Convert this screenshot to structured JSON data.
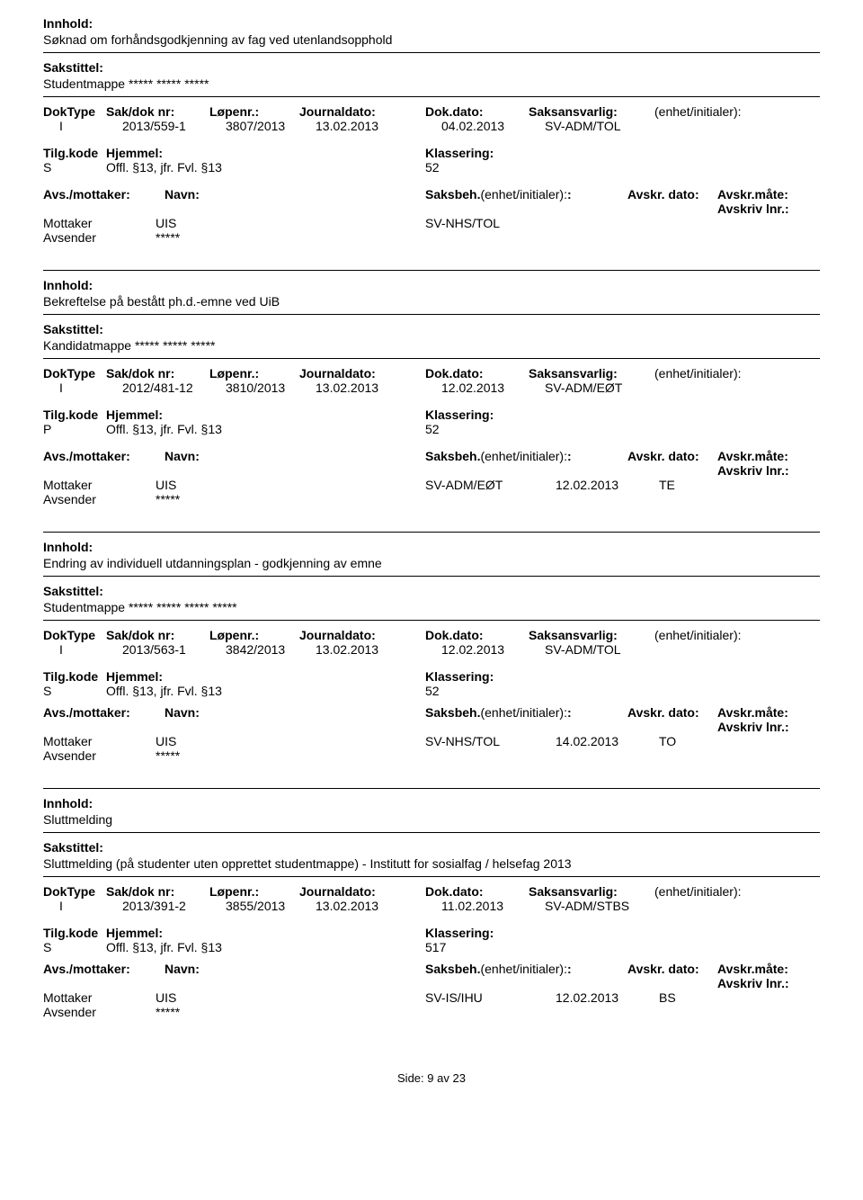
{
  "labels": {
    "innhold": "Innhold:",
    "sakstittel": "Sakstittel:",
    "doktype": "DokType",
    "sakdoknr": "Sak/dok nr:",
    "lopenr": "Løpenr.:",
    "journaldato": "Journaldato:",
    "dokdato": "Dok.dato:",
    "saksansvarlig": "Saksansvarlig:",
    "enhet": "(enhet/initialer):",
    "tilgkode": "Tilg.kode",
    "hjemmel": "Hjemmel:",
    "klassering": "Klassering:",
    "avsmottaker": "Avs./mottaker:",
    "navn": "Navn:",
    "saksbeh": "Saksbeh.",
    "saksbeh_enhet": "(enhet/initialer):",
    "avskr_dato": "Avskr. dato:",
    "avskr_mate": "Avskr.måte:",
    "avskriv_lnr": "Avskriv lnr.:",
    "mottaker": "Mottaker",
    "avsender": "Avsender"
  },
  "records": [
    {
      "innhold": "Søknad om forhåndsgodkjenning av fag ved utenlandsopphold",
      "sakstittel": "Studentmappe ***** ***** *****",
      "doktype": "I",
      "sakdoknr": "2013/559-1",
      "lopenr": "3807/2013",
      "journaldato": "13.02.2013",
      "dokdato": "04.02.2013",
      "saksansvarlig": "SV-ADM/TOL",
      "tilgkode": "S",
      "hjemmel": "Offl. §13, jfr. Fvl. §13",
      "klassering": "52",
      "mottaker_navn": "UIS",
      "saksbeh": "SV-NHS/TOL",
      "avskr_dato": "",
      "avskr_mate": "",
      "avsender_navn": "*****"
    },
    {
      "innhold": "Bekreftelse på bestått ph.d.-emne ved UiB",
      "sakstittel": "Kandidatmappe ***** ***** *****",
      "doktype": "I",
      "sakdoknr": "2012/481-12",
      "lopenr": "3810/2013",
      "journaldato": "13.02.2013",
      "dokdato": "12.02.2013",
      "saksansvarlig": "SV-ADM/EØT",
      "tilgkode": "P",
      "hjemmel": "Offl. §13, jfr. Fvl. §13",
      "klassering": "52",
      "mottaker_navn": "UIS",
      "saksbeh": "SV-ADM/EØT",
      "avskr_dato": "12.02.2013",
      "avskr_mate": "TE",
      "avsender_navn": "*****"
    },
    {
      "innhold": "Endring av individuell utdanningsplan - godkjenning av emne",
      "sakstittel": "Studentmappe ***** ***** ***** *****",
      "doktype": "I",
      "sakdoknr": "2013/563-1",
      "lopenr": "3842/2013",
      "journaldato": "13.02.2013",
      "dokdato": "12.02.2013",
      "saksansvarlig": "SV-ADM/TOL",
      "tilgkode": "S",
      "hjemmel": "Offl. §13, jfr. Fvl. §13",
      "klassering": "52",
      "mottaker_navn": "UIS",
      "saksbeh": "SV-NHS/TOL",
      "avskr_dato": "14.02.2013",
      "avskr_mate": "TO",
      "avsender_navn": "*****"
    },
    {
      "innhold": "Sluttmelding",
      "sakstittel": "Sluttmelding (på studenter uten opprettet studentmappe) - Institutt for sosialfag / helsefag 2013",
      "doktype": "I",
      "sakdoknr": "2013/391-2",
      "lopenr": "3855/2013",
      "journaldato": "13.02.2013",
      "dokdato": "11.02.2013",
      "saksansvarlig": "SV-ADM/STBS",
      "tilgkode": "S",
      "hjemmel": "Offl. §13, jfr. Fvl. §13",
      "klassering": "517",
      "mottaker_navn": "UIS",
      "saksbeh": "SV-IS/IHU",
      "avskr_dato": "12.02.2013",
      "avskr_mate": "BS",
      "avsender_navn": "*****"
    }
  ],
  "footer": {
    "label": "Side:",
    "page": "9",
    "sep": "av",
    "total": "23"
  }
}
